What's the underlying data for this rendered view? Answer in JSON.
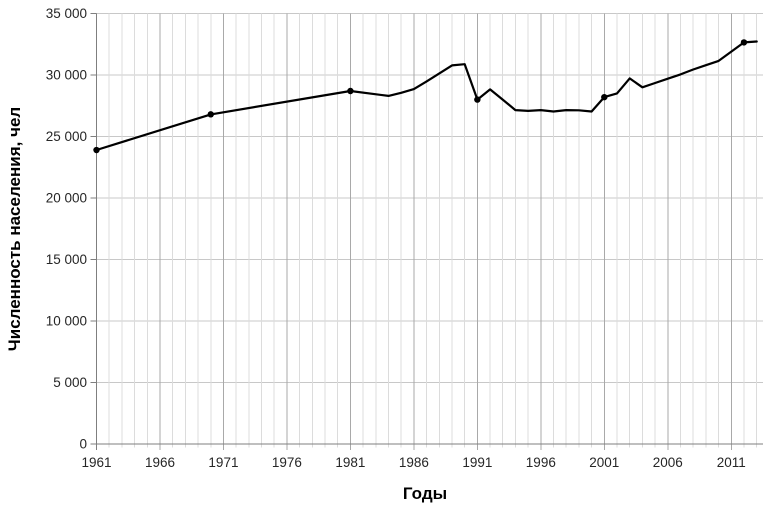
{
  "chart_data": {
    "type": "line",
    "title": "",
    "xlabel": "Годы",
    "ylabel": "Численность населения, чел",
    "xlim": [
      1961,
      2013.5
    ],
    "ylim": [
      0,
      35000
    ],
    "x_major_ticks": [
      1961,
      1966,
      1971,
      1976,
      1981,
      1986,
      1991,
      1996,
      2001,
      2006,
      2011
    ],
    "x_minor_tick_step_years": 1,
    "y_ticks": [
      0,
      5000,
      10000,
      15000,
      20000,
      25000,
      30000,
      35000
    ],
    "y_tick_labels": [
      "0",
      "5 000",
      "10 000",
      "15 000",
      "20 000",
      "25 000",
      "30 000",
      "35 000"
    ],
    "grid": {
      "horizontal": true,
      "vertical_minor_step_years": 1,
      "vertical_major_step_years": 5
    },
    "legend": "none",
    "series": [
      {
        "name": "Численность населения, чел",
        "color": "#000000",
        "line_width": 2.2,
        "marker": "filled-circle",
        "marker_radius": 3.2,
        "marker_years": [
          1961,
          1970,
          1981,
          1991,
          2001,
          2012
        ],
        "points": [
          [
            1961,
            23900
          ],
          [
            1970,
            26800
          ],
          [
            1981,
            28700
          ],
          [
            1984,
            28300
          ],
          [
            1985,
            28550
          ],
          [
            1986,
            28850
          ],
          [
            1987,
            29480
          ],
          [
            1988,
            30130
          ],
          [
            1989,
            30780
          ],
          [
            1990,
            30880
          ],
          [
            1991,
            28000
          ],
          [
            1992,
            28830
          ],
          [
            1993,
            28000
          ],
          [
            1994,
            27150
          ],
          [
            1995,
            27080
          ],
          [
            1996,
            27150
          ],
          [
            1997,
            27030
          ],
          [
            1998,
            27150
          ],
          [
            1999,
            27130
          ],
          [
            2000,
            27030
          ],
          [
            2001,
            28200
          ],
          [
            2002,
            28500
          ],
          [
            2003,
            29720
          ],
          [
            2004,
            29000
          ],
          [
            2005,
            29350
          ],
          [
            2006,
            29700
          ],
          [
            2007,
            30050
          ],
          [
            2008,
            30450
          ],
          [
            2009,
            30800
          ],
          [
            2010,
            31150
          ],
          [
            2011,
            31900
          ],
          [
            2012,
            32650
          ],
          [
            2013,
            32720
          ]
        ]
      }
    ],
    "colors": {
      "line": "#000000",
      "grid_horizontal": "#c8c8c8",
      "grid_vertical_minor": "#dcdcdc",
      "grid_vertical_major": "#a9a9a9",
      "axis": "#7f7f7f",
      "tick_label": "#262626",
      "axis_title": "#000000",
      "background": "#ffffff"
    }
  }
}
